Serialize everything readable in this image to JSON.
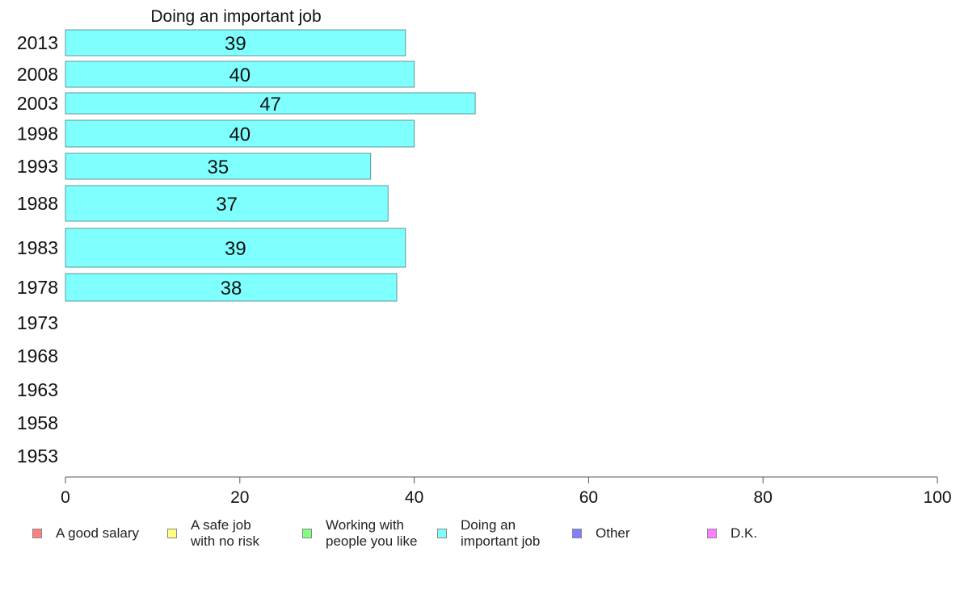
{
  "chart_data": {
    "type": "bar",
    "orientation": "horizontal",
    "title": "Doing an important job",
    "categories": [
      "2013",
      "2008",
      "2003",
      "1998",
      "1993",
      "1988",
      "1983",
      "1978",
      "1973",
      "1968",
      "1963",
      "1958",
      "1953"
    ],
    "series": [
      {
        "name": "Doing an important job",
        "values": [
          39,
          40,
          47,
          40,
          35,
          37,
          39,
          38,
          null,
          null,
          null,
          null,
          null
        ],
        "data_labels": [
          "39",
          "40",
          "47",
          "40",
          "35",
          "37",
          "39",
          "38",
          "",
          "",
          "",
          "",
          ""
        ]
      }
    ],
    "xlim": [
      0,
      100
    ],
    "xticks": [
      "0",
      "20",
      "40",
      "60",
      "80",
      "100"
    ],
    "grid": false,
    "legend_position": "bottom"
  },
  "legend": [
    {
      "label": "A good salary",
      "color": "#ff8080"
    },
    {
      "label": "A safe job\nwith no risk",
      "color": "#ffff80"
    },
    {
      "label": "Working with\npeople you like",
      "color": "#80ff80"
    },
    {
      "label": "Doing an\nimportant job",
      "color": "#80ffff"
    },
    {
      "label": "Other",
      "color": "#8080ff"
    },
    {
      "label": "D.K.",
      "color": "#ff80ff"
    }
  ],
  "colors": {
    "bar_fill": "#80ffff",
    "bar_stroke": "#5a9a9a",
    "axis": "#555555"
  }
}
